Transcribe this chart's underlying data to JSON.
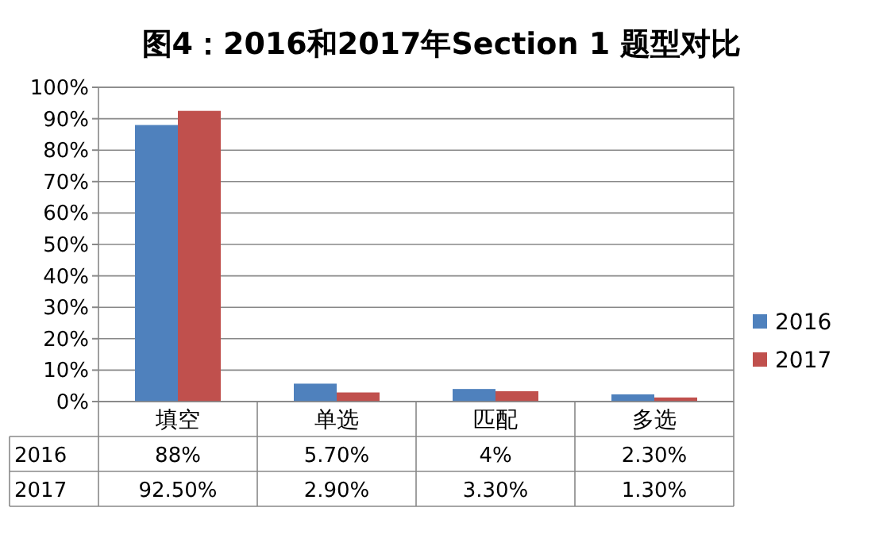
{
  "chart_data": {
    "type": "bar",
    "title": "图4：2016和2017年Section 1 题型对比",
    "categories": [
      "填空",
      "单选",
      "匹配",
      "多选"
    ],
    "series": [
      {
        "name": "2016",
        "color": "#4f81bd",
        "values": [
          88,
          5.7,
          4,
          2.3
        ],
        "value_labels": [
          "88%",
          "5.70%",
          "4%",
          "2.30%"
        ]
      },
      {
        "name": "2017",
        "color": "#c0504d",
        "values": [
          92.5,
          2.9,
          3.3,
          1.3
        ],
        "value_labels": [
          "92.50%",
          "2.90%",
          "3.30%",
          "1.30%"
        ]
      }
    ],
    "ylim": [
      0,
      100
    ],
    "yticks": [
      {
        "value": 0,
        "label": "0%"
      },
      {
        "value": 10,
        "label": "10%"
      },
      {
        "value": 20,
        "label": "20%"
      },
      {
        "value": 30,
        "label": "30%"
      },
      {
        "value": 40,
        "label": "40%"
      },
      {
        "value": 50,
        "label": "50%"
      },
      {
        "value": 60,
        "label": "60%"
      },
      {
        "value": 70,
        "label": "70%"
      },
      {
        "value": 80,
        "label": "80%"
      },
      {
        "value": 90,
        "label": "90%"
      },
      {
        "value": 100,
        "label": "100%"
      }
    ],
    "grid": "y",
    "legend": "right"
  }
}
